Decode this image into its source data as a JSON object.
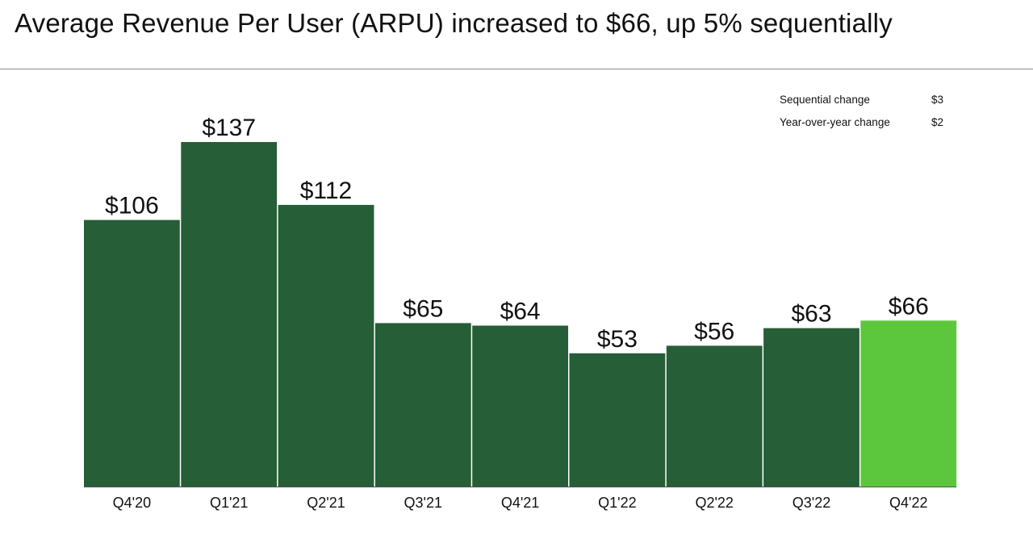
{
  "title": "Average Revenue Per User (ARPU) increased to $66, up 5% sequentially",
  "stats": [
    {
      "label": "Sequential change",
      "value": "$3"
    },
    {
      "label": "Year-over-year change",
      "value": "$2"
    }
  ],
  "colors": {
    "bar": "#265e37",
    "highlight": "#5cc73c",
    "baseline": "#555555"
  },
  "chart_data": {
    "type": "bar",
    "categories": [
      "Q4'20",
      "Q1'21",
      "Q2'21",
      "Q3'21",
      "Q4'21",
      "Q1'22",
      "Q2'22",
      "Q3'22",
      "Q4'22"
    ],
    "values": [
      106,
      137,
      112,
      65,
      64,
      53,
      56,
      63,
      66
    ],
    "value_labels": [
      "$106",
      "$137",
      "$112",
      "$65",
      "$64",
      "$53",
      "$56",
      "$63",
      "$66"
    ],
    "highlight_index": 8,
    "ylim": [
      0,
      137
    ],
    "grid": false,
    "title": "",
    "xlabel": "",
    "ylabel": ""
  }
}
